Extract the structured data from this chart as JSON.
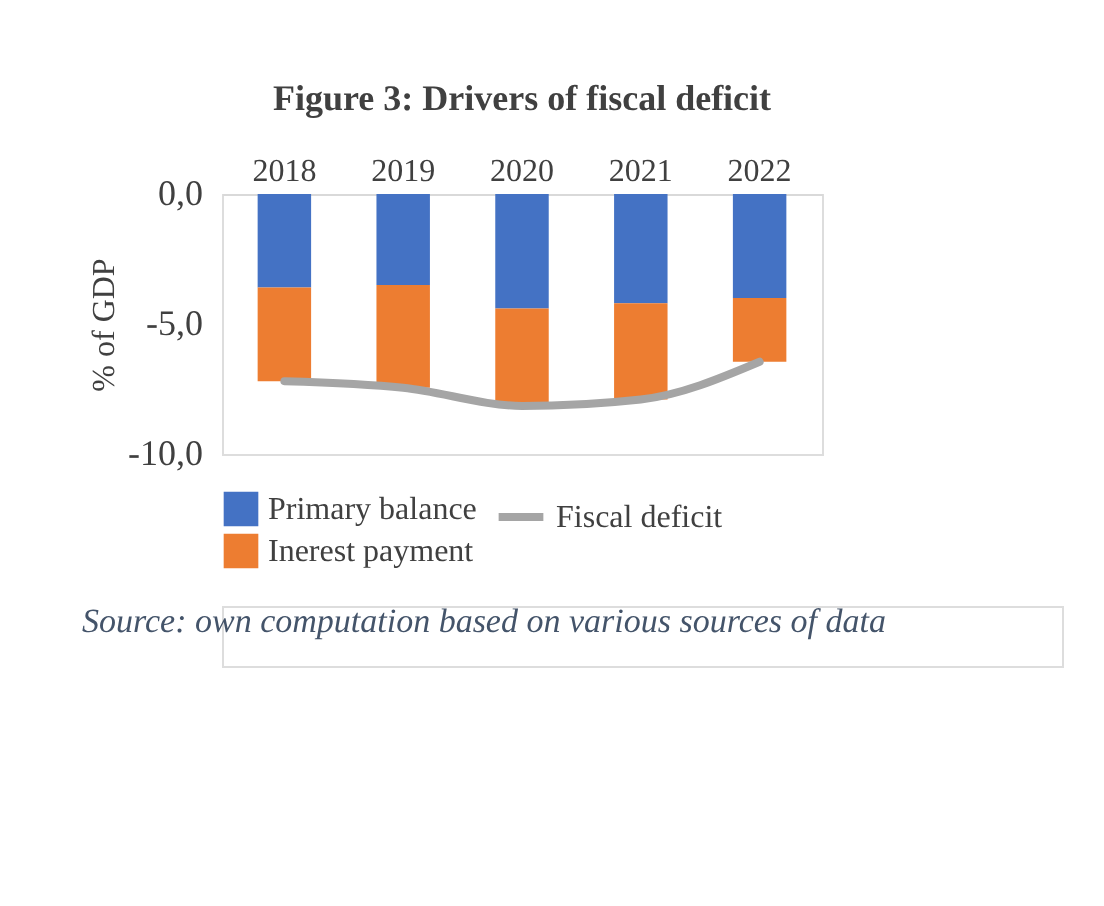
{
  "chart_data": {
    "type": "bar",
    "stacked": true,
    "title": "Figure 3: Drivers of fiscal deficit",
    "ylabel": "% of GDP",
    "categories": [
      "2018",
      "2019",
      "2020",
      "2021",
      "2022"
    ],
    "series": [
      {
        "name": "Primary balance",
        "color": "#4472c4",
        "values": [
          -3.6,
          -3.5,
          -4.4,
          -4.2,
          -4.0
        ]
      },
      {
        "name": "Inerest payment",
        "color": "#ed7d31",
        "values": [
          -3.6,
          -3.95,
          -3.6,
          -3.7,
          -2.45
        ]
      },
      {
        "name": "Fiscal deficit",
        "type": "line",
        "color": "#a5a5a5",
        "values": [
          -7.2,
          -7.45,
          -8.15,
          -7.9,
          -6.45
        ]
      }
    ],
    "ylim": [
      -10,
      0
    ],
    "yticks": [
      {
        "value": 0,
        "label": "0,0"
      },
      {
        "value": -5,
        "label": "-5,0"
      },
      {
        "value": -10,
        "label": "-10,0"
      }
    ],
    "grid": false,
    "legend": "bottom",
    "annotations": [
      "Source: own computation based on various sources of data"
    ]
  }
}
